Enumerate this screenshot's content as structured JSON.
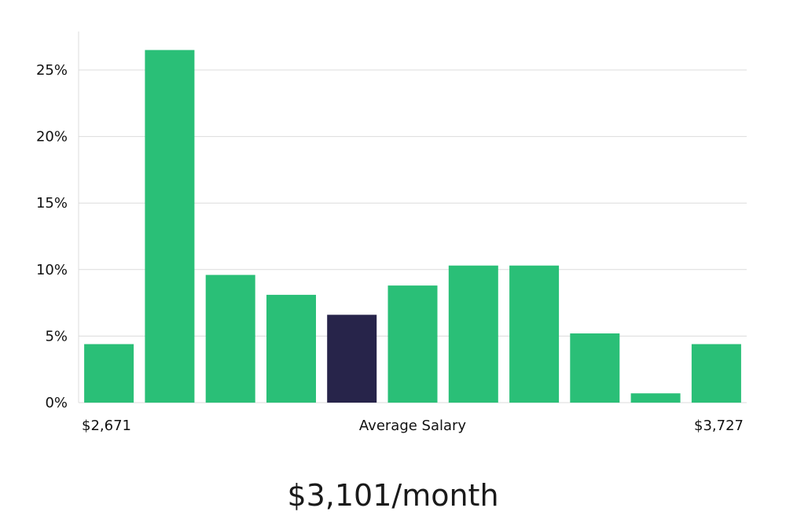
{
  "chart_data": {
    "type": "bar",
    "values": [
      4.4,
      26.5,
      9.6,
      8.1,
      6.6,
      8.8,
      10.3,
      10.3,
      5.2,
      0.7,
      4.4
    ],
    "highlight_index": 4,
    "y_unit": "%",
    "ylim": [
      0,
      28
    ],
    "yticks": [
      0,
      5,
      10,
      15,
      20,
      25
    ],
    "x_left_label": "$2,671",
    "x_center_label": "Average Salary",
    "x_right_label": "$3,727",
    "grid": true,
    "colors": {
      "bar": "#2abf77",
      "highlight": "#27244a",
      "grid": "#dcdcdc",
      "axis": "#dcdcdc"
    }
  },
  "summary": "$3,101/month"
}
